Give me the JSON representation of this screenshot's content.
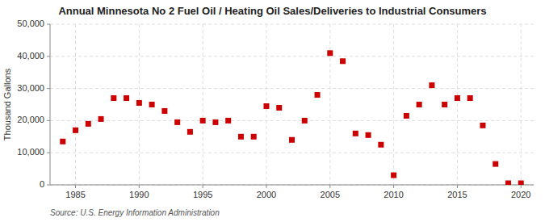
{
  "chart_data": {
    "type": "scatter",
    "title": "Annual Minnesota No 2 Fuel Oil / Heating Oil Sales/Deliveries to Industrial Consumers",
    "ylabel": "Thousand Gallons",
    "source": "Source: U.S. Energy Information Administration",
    "x": [
      1984,
      1985,
      1986,
      1987,
      1988,
      1989,
      1990,
      1991,
      1992,
      1993,
      1994,
      1995,
      1996,
      1997,
      1998,
      1999,
      2000,
      2001,
      2002,
      2003,
      2004,
      2005,
      2006,
      2007,
      2008,
      2009,
      2010,
      2011,
      2012,
      2013,
      2014,
      2015,
      2016,
      2017,
      2018,
      2019,
      2020
    ],
    "values": [
      13500,
      17000,
      19000,
      20500,
      27000,
      27000,
      25500,
      25000,
      23000,
      19500,
      16500,
      20000,
      19500,
      20000,
      15000,
      15000,
      24500,
      24000,
      14000,
      20000,
      28000,
      41000,
      38500,
      16000,
      15500,
      12500,
      3000,
      21500,
      25000,
      31000,
      25000,
      27000,
      27000,
      18500,
      6500,
      500,
      500
    ],
    "color": "#cc0000",
    "marker": "square",
    "xlim": [
      1983,
      2021
    ],
    "ylim": [
      0,
      50000
    ],
    "xticks": [
      1985,
      1990,
      1995,
      2000,
      2005,
      2010,
      2015,
      2020
    ],
    "yticks": [
      0,
      {
        "value": 10000,
        "label": "10,000"
      },
      {
        "value": 20000,
        "label": "20,000"
      },
      {
        "value": 30000,
        "label": "30,000"
      },
      {
        "value": 40000,
        "label": "40,000"
      },
      {
        "value": 50000,
        "label": "50,000"
      }
    ],
    "grid": true
  }
}
